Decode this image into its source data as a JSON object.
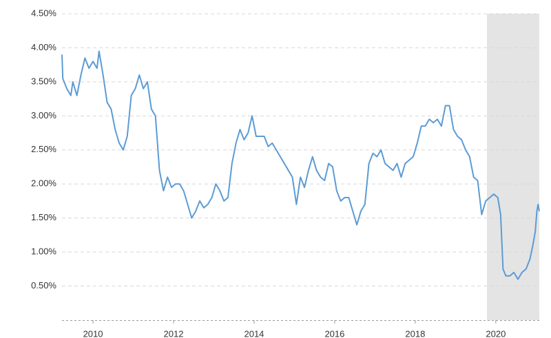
{
  "chart_data": {
    "type": "line",
    "color": "#5b9bd5",
    "shade_color": "#e4e4e4",
    "x": [
      2009.23,
      2009.25,
      2009.35,
      2009.45,
      2009.5,
      2009.6,
      2009.7,
      2009.8,
      2009.9,
      2010.0,
      2010.1,
      2010.15,
      2010.25,
      2010.35,
      2010.45,
      2010.55,
      2010.65,
      2010.75,
      2010.85,
      2010.95,
      2011.05,
      2011.15,
      2011.25,
      2011.35,
      2011.45,
      2011.55,
      2011.65,
      2011.75,
      2011.85,
      2011.95,
      2012.05,
      2012.15,
      2012.25,
      2012.35,
      2012.45,
      2012.55,
      2012.65,
      2012.75,
      2012.85,
      2012.95,
      2013.05,
      2013.15,
      2013.25,
      2013.35,
      2013.45,
      2013.55,
      2013.65,
      2013.75,
      2013.85,
      2013.95,
      2014.05,
      2014.15,
      2014.25,
      2014.35,
      2014.45,
      2014.55,
      2014.65,
      2014.75,
      2014.85,
      2014.95,
      2015.05,
      2015.15,
      2015.25,
      2015.35,
      2015.45,
      2015.55,
      2015.65,
      2015.75,
      2015.85,
      2015.95,
      2016.05,
      2016.15,
      2016.25,
      2016.35,
      2016.45,
      2016.55,
      2016.65,
      2016.75,
      2016.85,
      2016.95,
      2017.05,
      2017.15,
      2017.25,
      2017.35,
      2017.45,
      2017.55,
      2017.65,
      2017.75,
      2017.85,
      2017.95,
      2018.05,
      2018.15,
      2018.25,
      2018.35,
      2018.45,
      2018.55,
      2018.65,
      2018.75,
      2018.85,
      2018.95,
      2019.05,
      2019.15,
      2019.25,
      2019.35,
      2019.45,
      2019.55,
      2019.65,
      2019.75,
      2019.85,
      2019.95,
      2020.05,
      2020.12,
      2020.18,
      2020.25,
      2020.35,
      2020.45,
      2020.55,
      2020.65,
      2020.75,
      2020.85,
      2020.92,
      2020.98,
      2021.02,
      2021.05,
      2021.08
    ],
    "values": [
      3.9,
      3.55,
      3.4,
      3.3,
      3.5,
      3.3,
      3.6,
      3.85,
      3.7,
      3.8,
      3.7,
      3.95,
      3.6,
      3.2,
      3.1,
      2.8,
      2.6,
      2.5,
      2.7,
      3.3,
      3.4,
      3.6,
      3.4,
      3.5,
      3.1,
      3.0,
      2.2,
      1.9,
      2.1,
      1.95,
      2.0,
      2.0,
      1.9,
      1.7,
      1.5,
      1.6,
      1.75,
      1.65,
      1.7,
      1.8,
      2.0,
      1.9,
      1.75,
      1.8,
      2.3,
      2.6,
      2.8,
      2.65,
      2.75,
      3.0,
      2.7,
      2.7,
      2.7,
      2.55,
      2.6,
      2.5,
      2.4,
      2.3,
      2.2,
      2.1,
      1.7,
      2.1,
      1.95,
      2.2,
      2.4,
      2.2,
      2.1,
      2.05,
      2.3,
      2.25,
      1.9,
      1.75,
      1.8,
      1.8,
      1.6,
      1.4,
      1.6,
      1.7,
      2.3,
      2.45,
      2.4,
      2.5,
      2.3,
      2.25,
      2.2,
      2.3,
      2.1,
      2.3,
      2.35,
      2.4,
      2.6,
      2.85,
      2.85,
      2.95,
      2.9,
      2.95,
      2.85,
      3.15,
      3.15,
      2.8,
      2.7,
      2.65,
      2.5,
      2.4,
      2.1,
      2.05,
      1.55,
      1.75,
      1.8,
      1.85,
      1.8,
      1.55,
      0.75,
      0.65,
      0.65,
      0.7,
      0.6,
      0.7,
      0.75,
      0.9,
      1.1,
      1.3,
      1.6,
      1.7,
      1.6
    ],
    "xlim": [
      2009.23,
      2021.08
    ],
    "ylim": [
      0,
      4.5
    ],
    "xticks": [
      2010,
      2012,
      2014,
      2016,
      2018,
      2020
    ],
    "yticks": [
      {
        "value": 0.5,
        "label": "0.50%"
      },
      {
        "value": 1.0,
        "label": "1.00%"
      },
      {
        "value": 1.5,
        "label": "1.50%"
      },
      {
        "value": 2.0,
        "label": "2.00%"
      },
      {
        "value": 2.5,
        "label": "2.50%"
      },
      {
        "value": 3.0,
        "label": "3.00%"
      },
      {
        "value": 3.5,
        "label": "3.50%"
      },
      {
        "value": 4.0,
        "label": "4.00%"
      },
      {
        "value": 4.5,
        "label": "4.50%"
      }
    ],
    "shaded_region": [
      2019.78,
      2021.08
    ],
    "grid": true
  }
}
